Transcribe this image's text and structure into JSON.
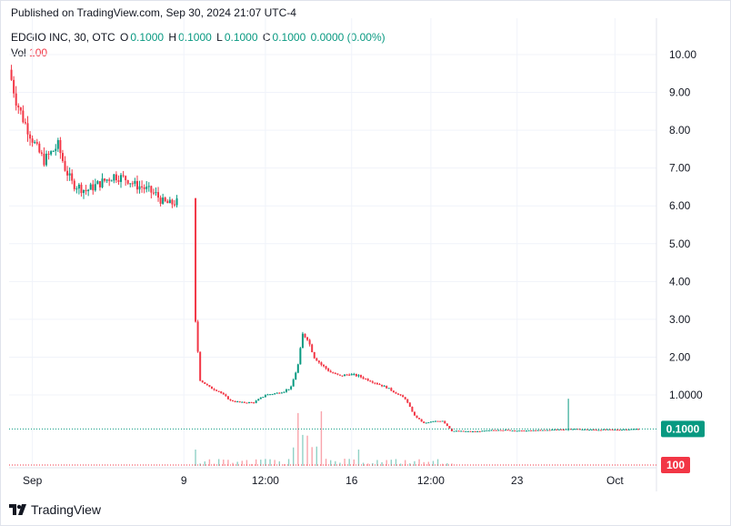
{
  "header": {
    "published": "Published on TradingView.com, Sep 30, 2024 21:07 UTC-4"
  },
  "legend": {
    "symbol": "EDGIO INC, 30, OTC",
    "open_label": "O",
    "open": "0.1000",
    "high_label": "H",
    "high": "0.1000",
    "low_label": "L",
    "low": "0.1000",
    "close_label": "C",
    "close": "0.1000",
    "change": "0.0000 (0.00%)",
    "vol_label": "Vol",
    "vol_value": "100"
  },
  "brand": {
    "name": "TradingView",
    "logo_icon": "tradingview-logo-icon"
  },
  "colors": {
    "up": "#089981",
    "down": "#f23645",
    "grid": "#f0f3fa",
    "text": "#131722"
  },
  "chart_data": {
    "type": "candlestick",
    "y_ticks": [
      "10.00",
      "9.00",
      "8.00",
      "7.00",
      "6.00",
      "5.00",
      "4.00",
      "3.00",
      "2.00",
      "1.0000"
    ],
    "y_tick_values": [
      10,
      9,
      8,
      7,
      6,
      5,
      4,
      3,
      2,
      1
    ],
    "ylim": [
      -0.1,
      10.2
    ],
    "x_ticks": [
      "Sep",
      "9",
      "12:00",
      "16",
      "12:00",
      "23",
      "Oct"
    ],
    "last_price_label": "0.1000",
    "last_price": 0.1,
    "volume_label": "100",
    "grid": true,
    "price_path": [
      [
        0,
        9.6
      ],
      [
        3,
        8.8
      ],
      [
        6,
        8.3
      ],
      [
        9,
        7.9
      ],
      [
        12,
        7.5
      ],
      [
        15,
        7.2
      ],
      [
        18,
        7.4
      ],
      [
        21,
        7.6
      ],
      [
        24,
        7.0
      ],
      [
        27,
        6.6
      ],
      [
        30,
        6.5
      ],
      [
        33,
        6.4
      ],
      [
        36,
        6.5
      ],
      [
        39,
        6.6
      ],
      [
        42,
        6.7
      ],
      [
        45,
        6.8
      ],
      [
        48,
        6.75
      ],
      [
        51,
        6.7
      ],
      [
        54,
        6.55
      ],
      [
        57,
        6.5
      ],
      [
        60,
        6.4
      ],
      [
        63,
        6.3
      ],
      [
        66,
        6.1
      ],
      [
        69,
        6.05
      ],
      [
        72,
        6.1
      ],
      [
        80,
        2.9
      ],
      [
        82,
        1.4
      ],
      [
        86,
        1.2
      ],
      [
        90,
        1.1
      ],
      [
        95,
        0.85
      ],
      [
        100,
        0.8
      ],
      [
        105,
        0.8
      ],
      [
        110,
        1.0
      ],
      [
        115,
        1.05
      ],
      [
        118,
        1.1
      ],
      [
        121,
        1.2
      ],
      [
        124,
        1.8
      ],
      [
        126,
        2.6
      ],
      [
        128,
        2.5
      ],
      [
        131,
        2.0
      ],
      [
        134,
        1.8
      ],
      [
        138,
        1.6
      ],
      [
        142,
        1.5
      ],
      [
        146,
        1.55
      ],
      [
        150,
        1.5
      ],
      [
        154,
        1.4
      ],
      [
        158,
        1.3
      ],
      [
        162,
        1.2
      ],
      [
        166,
        1.05
      ],
      [
        170,
        0.9
      ],
      [
        174,
        0.45
      ],
      [
        178,
        0.25
      ],
      [
        182,
        0.3
      ],
      [
        186,
        0.32
      ],
      [
        190,
        0.05
      ],
      [
        200,
        0.03
      ],
      [
        210,
        0.08
      ],
      [
        220,
        0.05
      ],
      [
        230,
        0.07
      ],
      [
        240,
        0.1
      ],
      [
        250,
        0.08
      ],
      [
        260,
        0.08
      ],
      [
        270,
        0.1
      ]
    ],
    "x_tick_positions": [
      10,
      75,
      110,
      147,
      181,
      218,
      260
    ]
  }
}
